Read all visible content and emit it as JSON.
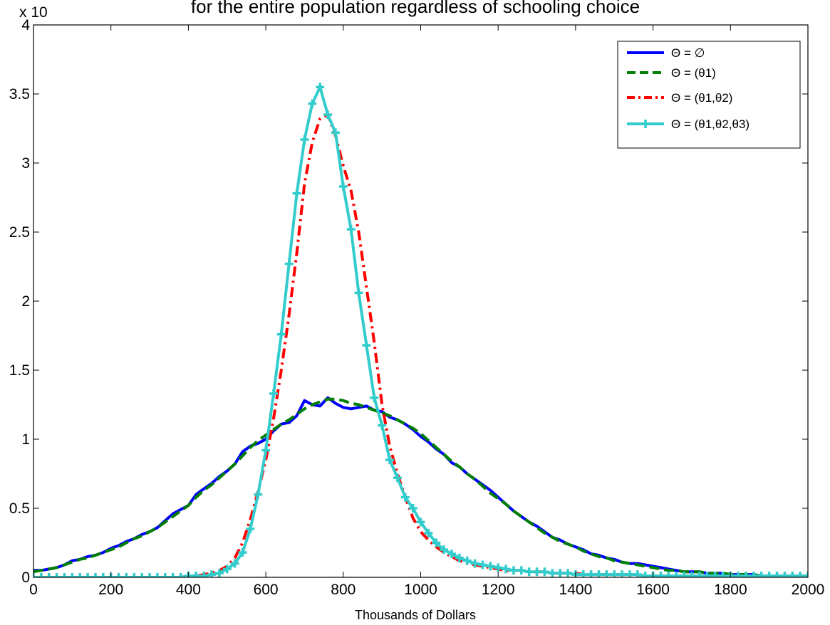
{
  "chart_data": {
    "type": "line",
    "title": "for the entire population regardless of schooling choice",
    "xlabel": "Thousands of Dollars",
    "ylabel": "",
    "y_exponent_label": "x 10",
    "xlim": [
      0,
      2000
    ],
    "ylim": [
      0,
      4
    ],
    "xticks": [
      "0",
      "200",
      "400",
      "600",
      "800",
      "1000",
      "1200",
      "1400",
      "1600",
      "1800",
      "2000"
    ],
    "yticks": [
      "0",
      "0.5",
      "1",
      "1.5",
      "2",
      "2.5",
      "3",
      "3.5",
      "4"
    ],
    "grid": false,
    "legend_position": "top-right",
    "x": [
      0,
      20,
      40,
      60,
      80,
      100,
      120,
      140,
      160,
      180,
      200,
      220,
      240,
      260,
      280,
      300,
      320,
      340,
      360,
      380,
      400,
      420,
      440,
      460,
      480,
      500,
      520,
      540,
      560,
      580,
      600,
      620,
      640,
      660,
      680,
      700,
      720,
      740,
      760,
      780,
      800,
      820,
      840,
      860,
      880,
      900,
      920,
      940,
      960,
      980,
      1000,
      1020,
      1040,
      1060,
      1080,
      1100,
      1120,
      1140,
      1160,
      1180,
      1200,
      1220,
      1240,
      1260,
      1280,
      1300,
      1320,
      1340,
      1360,
      1380,
      1400,
      1420,
      1440,
      1460,
      1480,
      1500,
      1520,
      1540,
      1560,
      1580,
      1600,
      1620,
      1640,
      1660,
      1680,
      1700,
      1720,
      1740,
      1760,
      1780,
      1800,
      1820,
      1840,
      1860,
      1880,
      1900,
      1920,
      1940,
      1960,
      1980,
      2000
    ],
    "series": [
      {
        "name": "Θ = ∅",
        "color": "#0000ff",
        "style": "solid",
        "markers": false,
        "values": [
          0.05,
          0.05,
          0.06,
          0.07,
          0.09,
          0.12,
          0.13,
          0.15,
          0.16,
          0.18,
          0.21,
          0.23,
          0.26,
          0.28,
          0.31,
          0.33,
          0.36,
          0.41,
          0.46,
          0.49,
          0.52,
          0.6,
          0.64,
          0.68,
          0.73,
          0.77,
          0.82,
          0.91,
          0.95,
          0.97,
          1.0,
          1.06,
          1.11,
          1.12,
          1.17,
          1.28,
          1.25,
          1.24,
          1.3,
          1.26,
          1.23,
          1.22,
          1.23,
          1.24,
          1.21,
          1.2,
          1.16,
          1.14,
          1.11,
          1.07,
          1.02,
          0.98,
          0.93,
          0.89,
          0.83,
          0.8,
          0.75,
          0.71,
          0.67,
          0.63,
          0.58,
          0.53,
          0.48,
          0.44,
          0.4,
          0.37,
          0.33,
          0.29,
          0.27,
          0.24,
          0.22,
          0.2,
          0.17,
          0.16,
          0.14,
          0.13,
          0.11,
          0.1,
          0.1,
          0.09,
          0.08,
          0.07,
          0.06,
          0.05,
          0.04,
          0.04,
          0.04,
          0.03,
          0.03,
          0.03,
          0.02,
          0.02,
          0.02,
          0.02,
          0.01,
          0.01,
          0.01,
          0.01,
          0.01,
          0.01,
          0.01
        ]
      },
      {
        "name": "Θ = (θ1)",
        "color": "#007f00",
        "style": "dashed",
        "markers": false,
        "values": [
          0.04,
          0.05,
          0.06,
          0.07,
          0.09,
          0.11,
          0.13,
          0.14,
          0.16,
          0.18,
          0.2,
          0.22,
          0.25,
          0.28,
          0.3,
          0.33,
          0.36,
          0.4,
          0.44,
          0.48,
          0.52,
          0.58,
          0.63,
          0.67,
          0.72,
          0.77,
          0.82,
          0.88,
          0.94,
          0.99,
          1.03,
          1.07,
          1.11,
          1.14,
          1.18,
          1.22,
          1.25,
          1.27,
          1.29,
          1.29,
          1.28,
          1.26,
          1.25,
          1.23,
          1.21,
          1.19,
          1.17,
          1.14,
          1.11,
          1.08,
          1.04,
          0.99,
          0.94,
          0.89,
          0.84,
          0.8,
          0.75,
          0.71,
          0.66,
          0.61,
          0.57,
          0.53,
          0.48,
          0.44,
          0.4,
          0.36,
          0.32,
          0.29,
          0.26,
          0.24,
          0.22,
          0.19,
          0.17,
          0.15,
          0.14,
          0.12,
          0.11,
          0.1,
          0.09,
          0.08,
          0.07,
          0.06,
          0.05,
          0.05,
          0.04,
          0.04,
          0.04,
          0.03,
          0.03,
          0.03,
          0.02,
          0.02,
          0.02,
          0.02,
          0.01,
          0.01,
          0.01,
          0.01,
          0.01,
          0.01,
          0.01
        ]
      },
      {
        "name": "Θ = (θ1,θ2)",
        "color": "#ff0000",
        "style": "dashdot",
        "markers": false,
        "values": [
          0,
          0,
          0,
          0,
          0,
          0,
          0,
          0,
          0,
          0,
          0,
          0,
          0,
          0,
          0,
          0,
          0,
          0,
          0,
          0,
          0.01,
          0.01,
          0.02,
          0.03,
          0.05,
          0.08,
          0.14,
          0.25,
          0.42,
          0.62,
          0.85,
          1.15,
          1.5,
          1.9,
          2.35,
          2.85,
          3.15,
          3.32,
          3.35,
          3.2,
          2.98,
          2.8,
          2.5,
          2.1,
          1.7,
          1.25,
          0.95,
          0.75,
          0.58,
          0.43,
          0.33,
          0.27,
          0.22,
          0.18,
          0.15,
          0.12,
          0.1,
          0.09,
          0.08,
          0.07,
          0.06,
          0.05,
          0.05,
          0.05,
          0.04,
          0.04,
          0.04,
          0.03,
          0.03,
          0.03,
          0.03,
          0.02,
          0.02,
          0.02,
          0.02,
          0.02,
          0.02,
          0.02,
          0.02,
          0.01,
          0.01,
          0.01,
          0.01,
          0.01,
          0.01,
          0.01,
          0.01,
          0.01,
          0.01,
          0.01,
          0.01,
          0.01,
          0.01,
          0.01,
          0.01,
          0.01,
          0.01,
          0.01,
          0.01,
          0.01,
          0.01
        ]
      },
      {
        "name": "Θ = (θ1,θ2,θ3)",
        "color": "#33cccc",
        "style": "solid",
        "markers": true,
        "values": [
          0,
          0,
          0,
          0,
          0,
          0,
          0,
          0,
          0,
          0,
          0,
          0,
          0,
          0,
          0,
          0,
          0,
          0,
          0,
          0,
          0.01,
          0.01,
          0.01,
          0.02,
          0.03,
          0.06,
          0.1,
          0.18,
          0.35,
          0.6,
          0.92,
          1.33,
          1.76,
          2.27,
          2.78,
          3.17,
          3.43,
          3.55,
          3.35,
          3.22,
          2.83,
          2.52,
          2.06,
          1.68,
          1.3,
          1.1,
          0.85,
          0.72,
          0.58,
          0.5,
          0.4,
          0.32,
          0.25,
          0.2,
          0.17,
          0.14,
          0.12,
          0.1,
          0.09,
          0.08,
          0.07,
          0.06,
          0.05,
          0.05,
          0.04,
          0.04,
          0.04,
          0.03,
          0.03,
          0.03,
          0.02,
          0.02,
          0.02,
          0.02,
          0.02,
          0.02,
          0.02,
          0.02,
          0.02,
          0.01,
          0.01,
          0.01,
          0.01,
          0.01,
          0.01,
          0.01,
          0.01,
          0.01,
          0.01,
          0.01,
          0.01,
          0.01,
          0.01,
          0.01,
          0.01,
          0.01,
          0.01,
          0.01,
          0.01,
          0.01,
          0.01
        ]
      }
    ]
  }
}
